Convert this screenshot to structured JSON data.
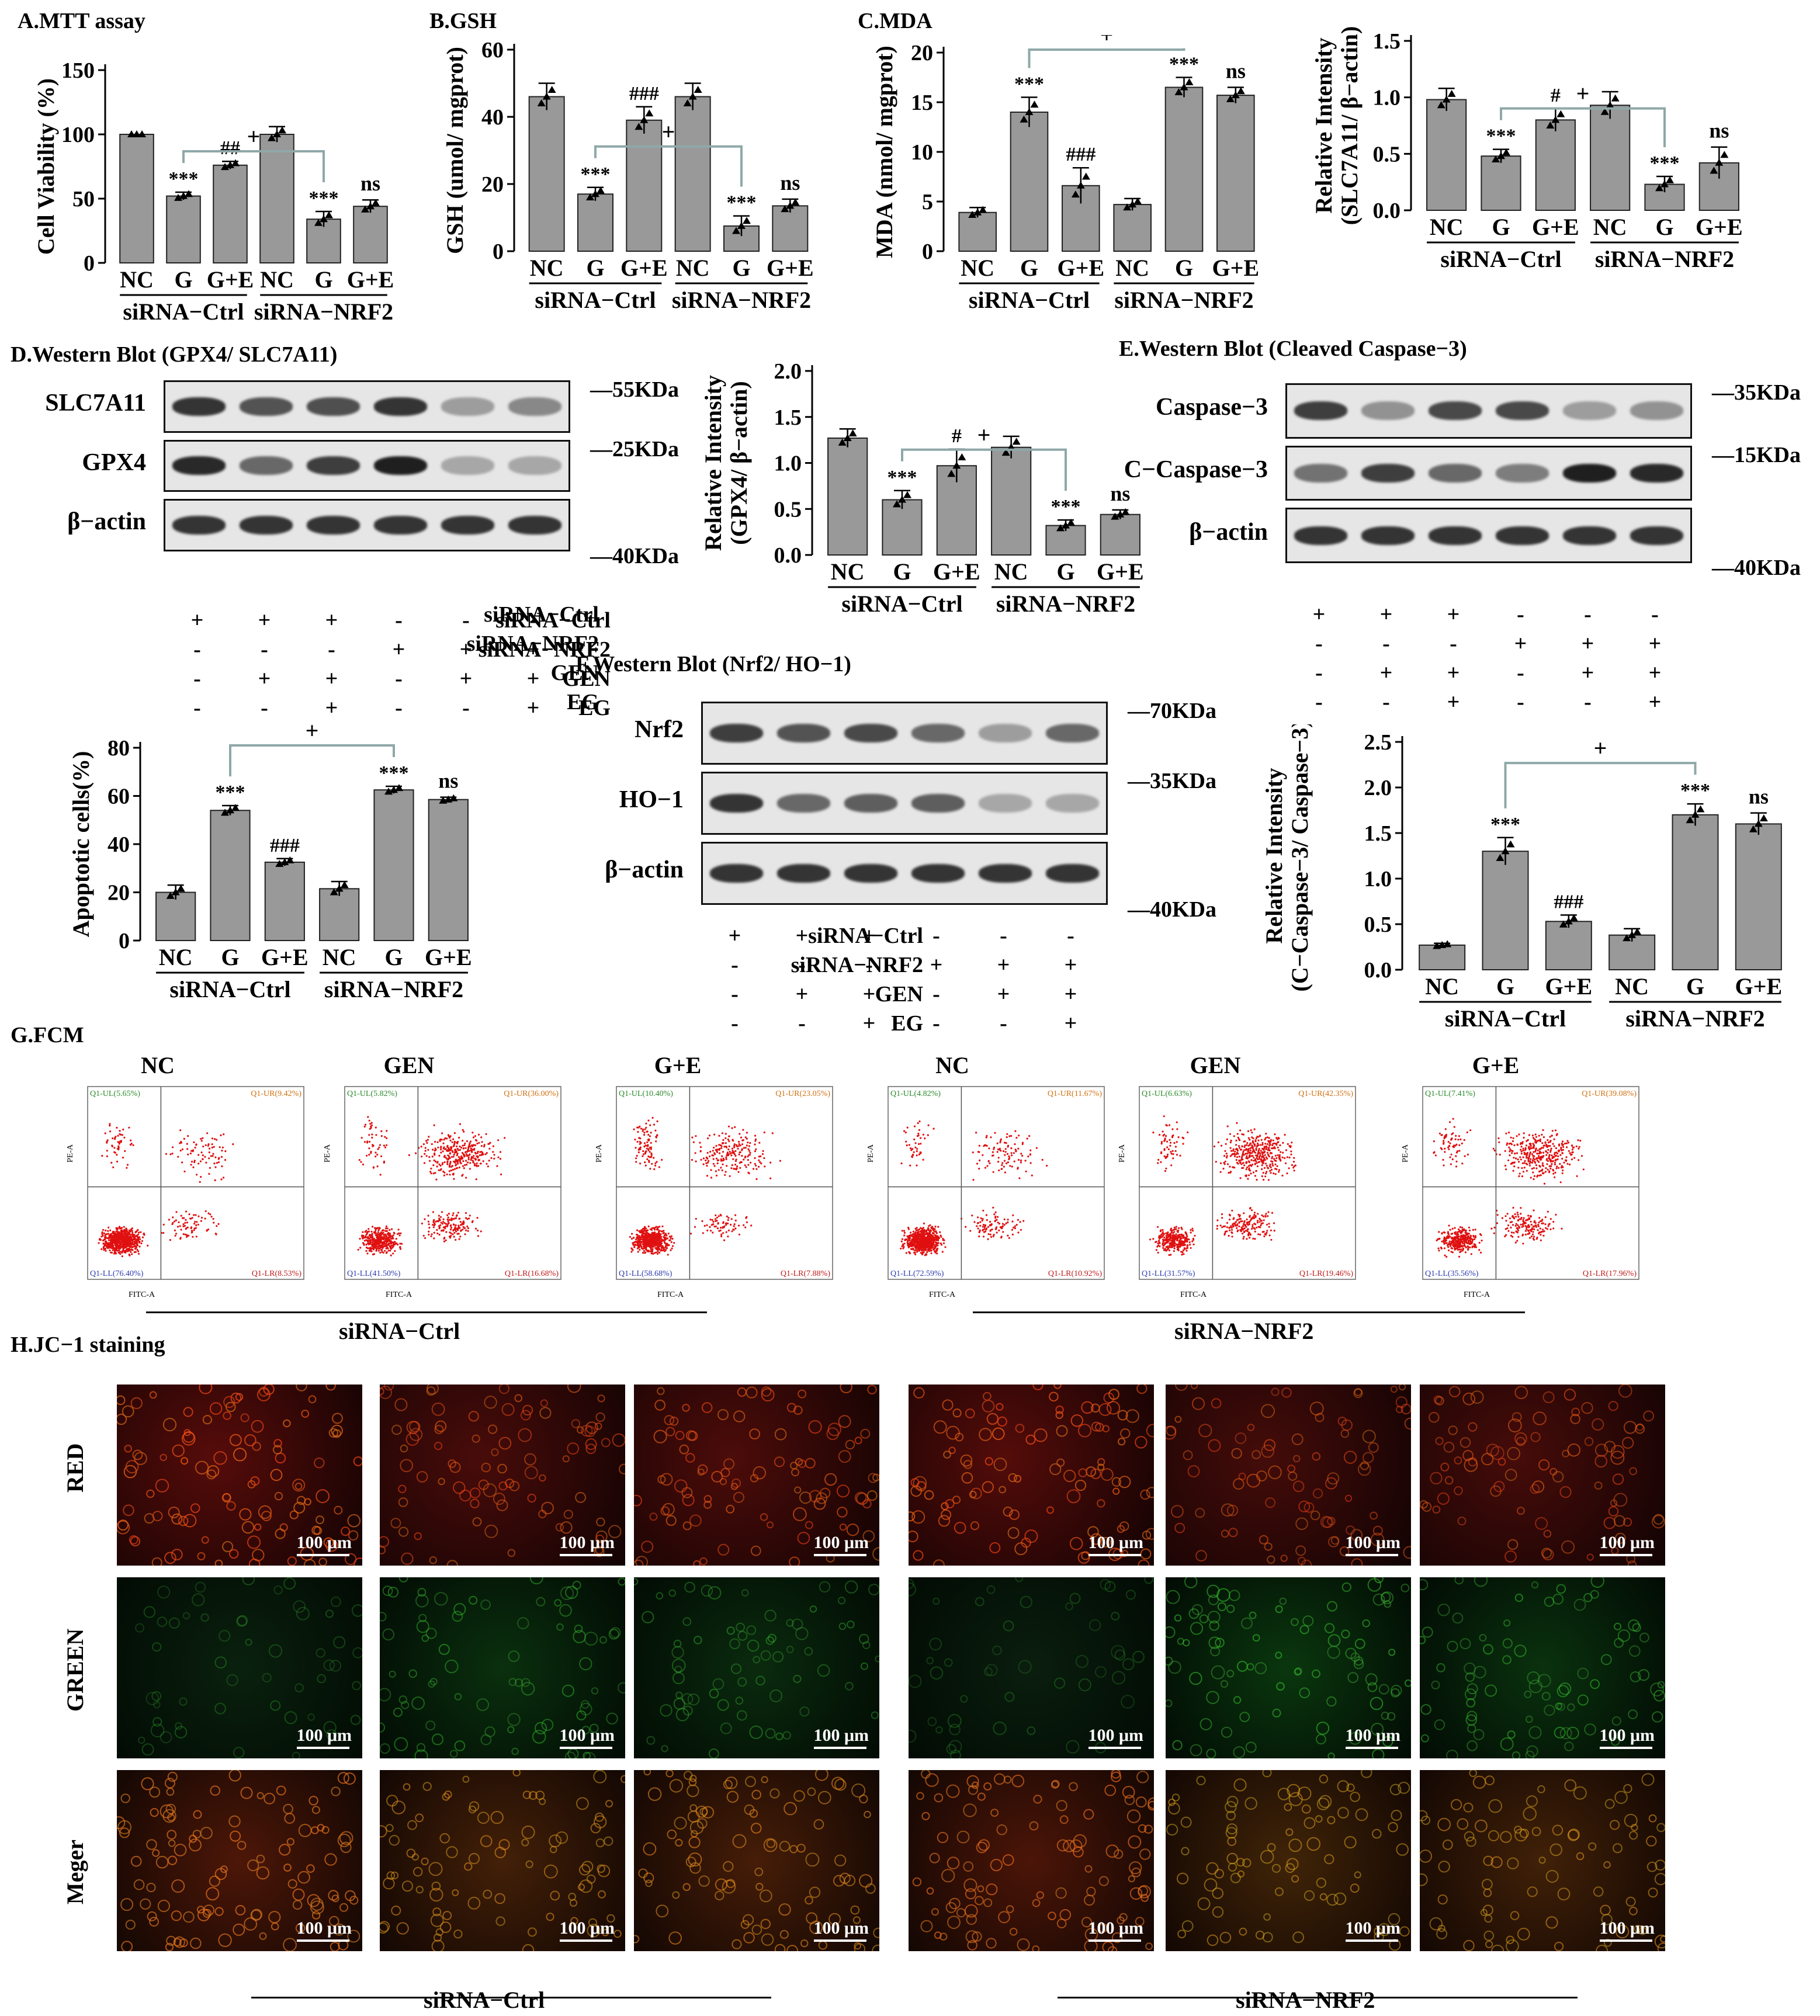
{
  "panel_titles": {
    "A": "A.MTT assay",
    "B": "B.GSH",
    "C": "C.MDA",
    "D": "D.Western Blot (GPX4/ SLC7A11)",
    "E": "E.Western Blot (Cleaved Caspase−3)",
    "F": "F.Western Blot (Nrf2/ HO−1)",
    "G": "G.FCM",
    "H": "H.JC−1 staining"
  },
  "groups": {
    "ctrl": "siRNA−Ctrl",
    "nrf2": "siRNA−NRF2"
  },
  "chart_data": [
    {
      "id": "mtt",
      "type": "bar",
      "title": "",
      "ylabel": "Cell Viability (%)",
      "ylim": [
        0,
        150
      ],
      "yticks": [
        "0",
        "50",
        "100",
        "150"
      ],
      "categories": [
        "NC",
        "G",
        "G+E",
        "NC",
        "G",
        "G+E"
      ],
      "values": [
        100,
        52,
        76,
        100,
        34,
        44
      ],
      "errors": [
        0,
        3,
        3,
        6,
        6,
        5
      ],
      "sig": [
        "",
        "***",
        "##",
        "",
        "***",
        "ns"
      ],
      "bracket": {
        "from": 1,
        "to": 4,
        "label": "+"
      }
    },
    {
      "id": "gsh",
      "type": "bar",
      "title": "",
      "ylabel": "GSH (umol/ mgprot)",
      "ylim": [
        0,
        60
      ],
      "yticks": [
        "0",
        "20",
        "40",
        "60"
      ],
      "categories": [
        "NC",
        "G",
        "G+E",
        "NC",
        "G",
        "G+E"
      ],
      "values": [
        46,
        17,
        39,
        46,
        7.5,
        13.5
      ],
      "errors": [
        4,
        2,
        4,
        4,
        3,
        2
      ],
      "sig": [
        "",
        "***",
        "###",
        "",
        "***",
        "ns"
      ],
      "bracket": {
        "from": 1,
        "to": 4,
        "label": "+"
      }
    },
    {
      "id": "mda",
      "type": "bar",
      "title": "",
      "ylabel": "MDA (nmol/ mgprot)",
      "ylim": [
        0,
        20
      ],
      "yticks": [
        "0",
        "5",
        "10",
        "15",
        "20"
      ],
      "categories": [
        "NC",
        "G",
        "G+E",
        "NC",
        "G",
        "G+E"
      ],
      "values": [
        3.9,
        14,
        6.6,
        4.7,
        16.5,
        15.7
      ],
      "errors": [
        0.5,
        1.5,
        1.8,
        0.6,
        1,
        0.8
      ],
      "sig": [
        "",
        "***",
        "###",
        "",
        "***",
        "ns"
      ],
      "bracket": {
        "from": 1,
        "to": 4,
        "label": "+"
      }
    },
    {
      "id": "slc7a11",
      "type": "bar",
      "title": "",
      "ylabel": "Relative Intensity (SLC7A11/ β−actin)",
      "ylim": [
        0,
        1.5
      ],
      "yticks": [
        "0.0",
        "0.5",
        "1.0",
        "1.5"
      ],
      "categories": [
        "NC",
        "G",
        "G+E",
        "NC",
        "G",
        "G+E"
      ],
      "values": [
        0.98,
        0.48,
        0.8,
        0.93,
        0.23,
        0.42
      ],
      "errors": [
        0.1,
        0.06,
        0.1,
        0.12,
        0.07,
        0.14
      ],
      "sig": [
        "",
        "***",
        "#",
        "",
        "***",
        "ns"
      ],
      "bracket": {
        "from": 1,
        "to": 4,
        "label": "+"
      }
    },
    {
      "id": "gpx4",
      "type": "bar",
      "title": "",
      "ylabel": "Relative Intensity (GPX4/ β−actin)",
      "ylim": [
        0,
        2.0
      ],
      "yticks": [
        "0.0",
        "0.5",
        "1.0",
        "1.5",
        "2.0"
      ],
      "categories": [
        "NC",
        "G",
        "G+E",
        "NC",
        "G",
        "G+E"
      ],
      "values": [
        1.27,
        0.6,
        0.97,
        1.17,
        0.32,
        0.44
      ],
      "errors": [
        0.1,
        0.1,
        0.18,
        0.12,
        0.06,
        0.05
      ],
      "sig": [
        "",
        "***",
        "#",
        "",
        "***",
        "ns"
      ],
      "bracket": {
        "from": 1,
        "to": 4,
        "label": "+"
      }
    },
    {
      "id": "apoptosis",
      "type": "bar",
      "title": "",
      "ylabel": "Apoptotic cells(%)",
      "ylim": [
        0,
        80
      ],
      "yticks": [
        "0",
        "20",
        "40",
        "60",
        "80"
      ],
      "categories": [
        "NC",
        "G",
        "G+E",
        "NC",
        "G",
        "G+E"
      ],
      "values": [
        20,
        54,
        32.5,
        21.5,
        62.5,
        58.5
      ],
      "errors": [
        3,
        2,
        1.5,
        3,
        1.5,
        1
      ],
      "sig": [
        "",
        "***",
        "###",
        "",
        "***",
        "ns"
      ],
      "bracket": {
        "from": 1,
        "to": 4,
        "label": "+"
      }
    },
    {
      "id": "caspase",
      "type": "bar",
      "title": "",
      "ylabel": "Relative Intensity (C−Caspase−3/ Caspase−3)",
      "ylim": [
        0,
        2.5
      ],
      "yticks": [
        "0.0",
        "0.5",
        "1.0",
        "1.5",
        "2.0",
        "2.5"
      ],
      "categories": [
        "NC",
        "G",
        "G+E",
        "NC",
        "G",
        "G+E"
      ],
      "values": [
        0.27,
        1.3,
        0.53,
        0.38,
        1.7,
        1.6
      ],
      "errors": [
        0.02,
        0.15,
        0.07,
        0.07,
        0.12,
        0.12
      ],
      "sig": [
        "",
        "***",
        "###",
        "",
        "***",
        "ns"
      ],
      "bracket": {
        "from": 1,
        "to": 4,
        "label": "+"
      }
    },
    {
      "id": "fcm",
      "type": "scatter",
      "title": "",
      "xlabel": "FITC-A",
      "ylabel": "PE-A",
      "panels": [
        {
          "label": "NC",
          "UL": "Q1-UL(5.65%)",
          "UR": "Q1-UR(9.42%)",
          "LL": "Q1-LL(76.40%)",
          "LR": "Q1-LR(8.53%)"
        },
        {
          "label": "GEN",
          "UL": "Q1-UL(5.82%)",
          "UR": "Q1-UR(36.00%)",
          "LL": "Q1-LL(41.50%)",
          "LR": "Q1-LR(16.68%)"
        },
        {
          "label": "G+E",
          "UL": "Q1-UL(10.40%)",
          "UR": "Q1-UR(23.05%)",
          "LL": "Q1-LL(58.68%)",
          "LR": "Q1-LR(7.88%)"
        },
        {
          "label": "NC",
          "UL": "Q1-UL(4.82%)",
          "UR": "Q1-UR(11.67%)",
          "LL": "Q1-LL(72.59%)",
          "LR": "Q1-LR(10.92%)"
        },
        {
          "label": "GEN",
          "UL": "Q1-UL(6.63%)",
          "UR": "Q1-UR(42.35%)",
          "LL": "Q1-LL(31.57%)",
          "LR": "Q1-LR(19.46%)"
        },
        {
          "label": "G+E",
          "UL": "Q1-UL(7.41%)",
          "UR": "Q1-UR(39.08%)",
          "LL": "Q1-LL(35.56%)",
          "LR": "Q1-LR(17.96%)"
        }
      ]
    }
  ],
  "westerns": {
    "D": {
      "rows": [
        {
          "label": "SLC7A11",
          "kda": "55KDa",
          "intens": [
            0.85,
            0.7,
            0.72,
            0.85,
            0.35,
            0.45
          ]
        },
        {
          "label": "GPX4",
          "kda": "25KDa",
          "intens": [
            0.9,
            0.6,
            0.8,
            0.95,
            0.3,
            0.3
          ]
        },
        {
          "label": "β−actin",
          "kda": "40KDa",
          "intens": [
            0.85,
            0.85,
            0.85,
            0.85,
            0.85,
            0.85
          ]
        }
      ],
      "conditions": [
        {
          "label": "siRNA−Ctrl",
          "marks": [
            "+",
            "+",
            "+",
            "-",
            "-",
            "-"
          ]
        },
        {
          "label": "siRNA−NRF2",
          "marks": [
            "-",
            "-",
            "-",
            "+",
            "+",
            "+"
          ]
        },
        {
          "label": "GEN",
          "marks": [
            "-",
            "+",
            "+",
            "-",
            "+",
            "+"
          ]
        },
        {
          "label": "EG",
          "marks": [
            "-",
            "-",
            "+",
            "-",
            "-",
            "+"
          ]
        }
      ]
    },
    "E": {
      "rows": [
        {
          "label": "Caspase−3",
          "kda": "35KDa",
          "intens": [
            0.8,
            0.4,
            0.75,
            0.75,
            0.35,
            0.4
          ]
        },
        {
          "label": "C−Caspase−3",
          "kda": "15KDa",
          "intens": [
            0.55,
            0.8,
            0.6,
            0.5,
            0.95,
            0.9
          ]
        },
        {
          "label": "β−actin",
          "kda": "40KDa",
          "intens": [
            0.85,
            0.85,
            0.85,
            0.85,
            0.85,
            0.85
          ]
        }
      ],
      "conditions": [
        {
          "label": "siRNA−Ctrl",
          "marks": [
            "+",
            "+",
            "+",
            "-",
            "-",
            "-"
          ]
        },
        {
          "label": "siRNA−NRF2",
          "marks": [
            "-",
            "-",
            "-",
            "+",
            "+",
            "+"
          ]
        },
        {
          "label": "GEN",
          "marks": [
            "-",
            "+",
            "+",
            "-",
            "+",
            "+"
          ]
        },
        {
          "label": "EG",
          "marks": [
            "-",
            "-",
            "+",
            "-",
            "-",
            "+"
          ]
        }
      ]
    },
    "F": {
      "rows": [
        {
          "label": "Nrf2",
          "kda": "70KDa",
          "intens": [
            0.8,
            0.7,
            0.75,
            0.6,
            0.35,
            0.6
          ]
        },
        {
          "label": "HO−1",
          "kda": "35KDa",
          "intens": [
            0.85,
            0.6,
            0.65,
            0.65,
            0.3,
            0.3
          ]
        },
        {
          "label": "β−actin",
          "kda": "40KDa",
          "intens": [
            0.85,
            0.85,
            0.85,
            0.85,
            0.85,
            0.85
          ]
        }
      ],
      "conditions": [
        {
          "label": "siRNA−Ctrl",
          "marks": [
            "+",
            "+",
            "+",
            "-",
            "-",
            "-"
          ]
        },
        {
          "label": "siRNA−NRF2",
          "marks": [
            "-",
            "-",
            "-",
            "+",
            "+",
            "+"
          ]
        },
        {
          "label": "GEN",
          "marks": [
            "-",
            "+",
            "+",
            "-",
            "+",
            "+"
          ]
        },
        {
          "label": "EG",
          "marks": [
            "-",
            "-",
            "+",
            "-",
            "-",
            "+"
          ]
        }
      ]
    }
  },
  "jc1": {
    "rows": [
      "RED",
      "GREEN",
      "Meger"
    ],
    "scale": "100 μm"
  },
  "colors": {
    "bar": "#999999",
    "bracket": "#8fa8a8",
    "red": "#cc2a10",
    "green": "#1f8a2a"
  }
}
